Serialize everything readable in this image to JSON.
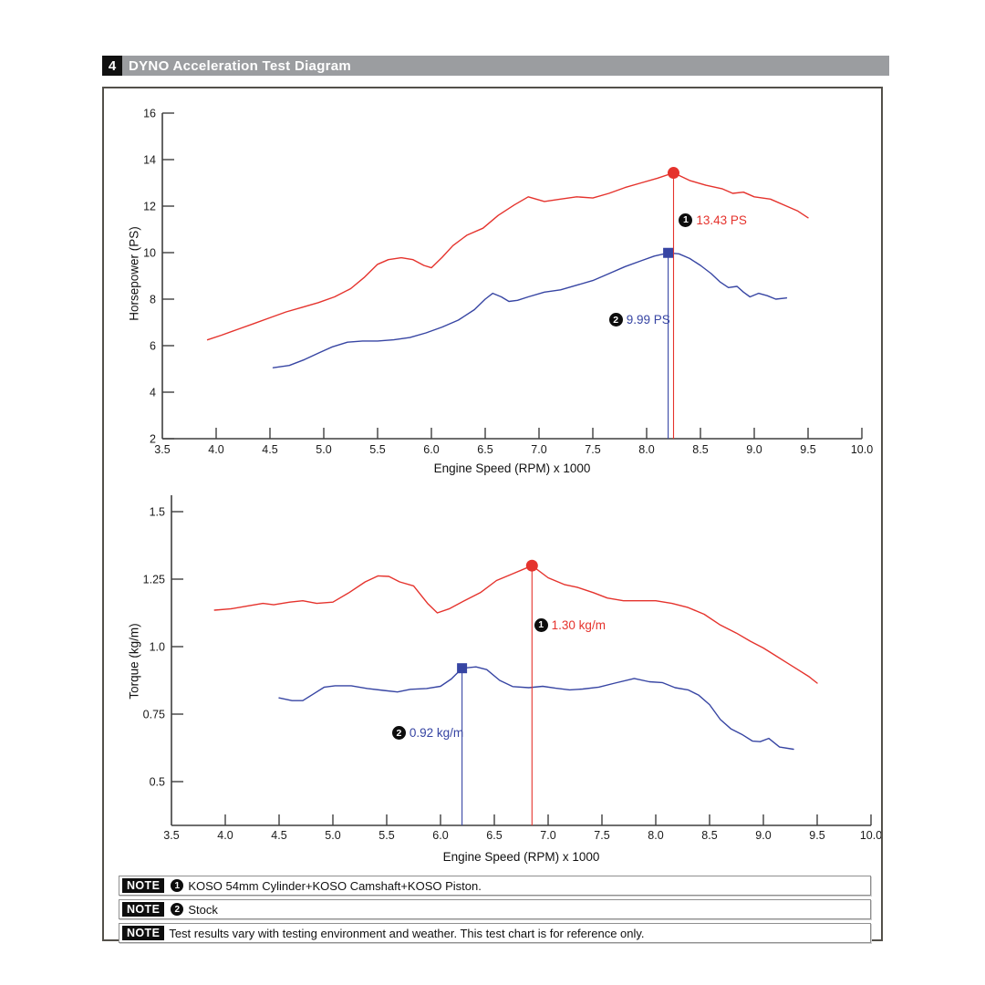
{
  "header": {
    "number": "4",
    "title": "DYNO Acceleration Test Diagram"
  },
  "colors": {
    "koso_red": "#e5332d",
    "stock_blue": "#3745a3",
    "header_gray": "#9b9da0",
    "axis": "#3f3f3f"
  },
  "chart_data": [
    {
      "type": "line",
      "title": "DYNO Acceleration Test - Horsepower",
      "xlabel": "Engine Speed (RPM) x 1000",
      "ylabel": "Horsepower (PS)",
      "xlim": [
        3.5,
        10.0
      ],
      "ylim": [
        2,
        16
      ],
      "grid": false,
      "legend_position": "none",
      "xtick_labels": [
        "3.5",
        "4.0",
        "4.5",
        "5.0",
        "5.5",
        "6.0",
        "6.5",
        "7.0",
        "7.5",
        "8.0",
        "8.5",
        "9.0",
        "9.5",
        "10.0"
      ],
      "ytick_labels": [
        "2",
        "4",
        "6",
        "8",
        "10",
        "12",
        "14",
        "16"
      ],
      "series": [
        {
          "name": "KOSO 54mm Cylinder+KOSO Camshaft+KOSO Piston",
          "color": "#e5332d",
          "points": [
            [
              3.92,
              6.25
            ],
            [
              4.05,
              6.45
            ],
            [
              4.2,
              6.7
            ],
            [
              4.35,
              6.95
            ],
            [
              4.5,
              7.2
            ],
            [
              4.65,
              7.45
            ],
            [
              4.8,
              7.65
            ],
            [
              4.95,
              7.85
            ],
            [
              5.1,
              8.1
            ],
            [
              5.25,
              8.45
            ],
            [
              5.38,
              8.95
            ],
            [
              5.5,
              9.5
            ],
            [
              5.6,
              9.7
            ],
            [
              5.72,
              9.78
            ],
            [
              5.83,
              9.7
            ],
            [
              5.93,
              9.45
            ],
            [
              6.0,
              9.35
            ],
            [
              6.1,
              9.8
            ],
            [
              6.2,
              10.3
            ],
            [
              6.33,
              10.75
            ],
            [
              6.48,
              11.05
            ],
            [
              6.62,
              11.6
            ],
            [
              6.77,
              12.05
            ],
            [
              6.9,
              12.4
            ],
            [
              7.05,
              12.2
            ],
            [
              7.2,
              12.3
            ],
            [
              7.35,
              12.4
            ],
            [
              7.5,
              12.35
            ],
            [
              7.65,
              12.55
            ],
            [
              7.8,
              12.8
            ],
            [
              7.95,
              13.0
            ],
            [
              8.1,
              13.2
            ],
            [
              8.25,
              13.43
            ],
            [
              8.4,
              13.1
            ],
            [
              8.55,
              12.9
            ],
            [
              8.7,
              12.75
            ],
            [
              8.8,
              12.55
            ],
            [
              8.9,
              12.6
            ],
            [
              9.0,
              12.4
            ],
            [
              9.15,
              12.3
            ],
            [
              9.3,
              12.0
            ],
            [
              9.4,
              11.8
            ],
            [
              9.5,
              11.5
            ]
          ]
        },
        {
          "name": "Stock",
          "color": "#3745a3",
          "points": [
            [
              4.53,
              5.05
            ],
            [
              4.68,
              5.15
            ],
            [
              4.82,
              5.4
            ],
            [
              4.96,
              5.7
            ],
            [
              5.08,
              5.95
            ],
            [
              5.22,
              6.15
            ],
            [
              5.36,
              6.2
            ],
            [
              5.5,
              6.2
            ],
            [
              5.65,
              6.25
            ],
            [
              5.8,
              6.35
            ],
            [
              5.95,
              6.55
            ],
            [
              6.1,
              6.8
            ],
            [
              6.25,
              7.1
            ],
            [
              6.4,
              7.55
            ],
            [
              6.5,
              8.0
            ],
            [
              6.57,
              8.25
            ],
            [
              6.65,
              8.1
            ],
            [
              6.72,
              7.9
            ],
            [
              6.8,
              7.95
            ],
            [
              6.9,
              8.1
            ],
            [
              7.05,
              8.3
            ],
            [
              7.2,
              8.4
            ],
            [
              7.35,
              8.6
            ],
            [
              7.5,
              8.8
            ],
            [
              7.65,
              9.1
            ],
            [
              7.8,
              9.4
            ],
            [
              7.95,
              9.65
            ],
            [
              8.07,
              9.85
            ],
            [
              8.2,
              9.99
            ],
            [
              8.3,
              9.95
            ],
            [
              8.4,
              9.75
            ],
            [
              8.5,
              9.45
            ],
            [
              8.6,
              9.1
            ],
            [
              8.68,
              8.75
            ],
            [
              8.76,
              8.5
            ],
            [
              8.84,
              8.55
            ],
            [
              8.9,
              8.3
            ],
            [
              8.96,
              8.1
            ],
            [
              9.04,
              8.25
            ],
            [
              9.12,
              8.15
            ],
            [
              9.2,
              8.0
            ],
            [
              9.3,
              8.05
            ]
          ]
        }
      ],
      "markers": [
        {
          "series": 0,
          "x": 8.25,
          "y": 13.43,
          "shape": "circle",
          "badge": "1",
          "label": "13.43 PS",
          "label_x": 8.3,
          "label_y": 11.4
        },
        {
          "series": 1,
          "x": 8.2,
          "y": 9.99,
          "shape": "square",
          "badge": "2",
          "label": "9.99 PS",
          "label_x": 7.65,
          "label_y": 7.1
        }
      ]
    },
    {
      "type": "line",
      "title": "DYNO Acceleration Test - Torque",
      "xlabel": "Engine Speed (RPM) x 1000",
      "ylabel": "Torque (kg/m)",
      "xlim": [
        3.5,
        10.0
      ],
      "ylim": [
        0.34,
        1.55
      ],
      "grid": false,
      "legend_position": "none",
      "xtick_labels": [
        "3.5",
        "4.0",
        "4.5",
        "5.0",
        "5.5",
        "6.0",
        "6.5",
        "7.0",
        "7.5",
        "8.0",
        "8.5",
        "9.0",
        "9.5",
        "10.0"
      ],
      "ytick_labels": [
        "0.5",
        "0.75",
        "1.0",
        "1.25",
        "1.5"
      ],
      "series": [
        {
          "name": "KOSO 54mm Cylinder+KOSO Camshaft+KOSO Piston",
          "color": "#e5332d",
          "points": [
            [
              3.9,
              1.135
            ],
            [
              4.05,
              1.14
            ],
            [
              4.2,
              1.15
            ],
            [
              4.35,
              1.16
            ],
            [
              4.45,
              1.155
            ],
            [
              4.6,
              1.165
            ],
            [
              4.72,
              1.17
            ],
            [
              4.85,
              1.16
            ],
            [
              5.0,
              1.165
            ],
            [
              5.15,
              1.2
            ],
            [
              5.3,
              1.24
            ],
            [
              5.42,
              1.262
            ],
            [
              5.52,
              1.26
            ],
            [
              5.62,
              1.24
            ],
            [
              5.75,
              1.225
            ],
            [
              5.88,
              1.16
            ],
            [
              5.97,
              1.125
            ],
            [
              6.08,
              1.14
            ],
            [
              6.22,
              1.17
            ],
            [
              6.37,
              1.2
            ],
            [
              6.52,
              1.245
            ],
            [
              6.67,
              1.27
            ],
            [
              6.85,
              1.3
            ],
            [
              7.0,
              1.255
            ],
            [
              7.15,
              1.23
            ],
            [
              7.27,
              1.22
            ],
            [
              7.42,
              1.2
            ],
            [
              7.55,
              1.18
            ],
            [
              7.7,
              1.17
            ],
            [
              7.85,
              1.17
            ],
            [
              8.0,
              1.17
            ],
            [
              8.15,
              1.16
            ],
            [
              8.3,
              1.145
            ],
            [
              8.45,
              1.12
            ],
            [
              8.6,
              1.08
            ],
            [
              8.75,
              1.05
            ],
            [
              8.88,
              1.02
            ],
            [
              9.0,
              0.995
            ],
            [
              9.1,
              0.97
            ],
            [
              9.2,
              0.945
            ],
            [
              9.32,
              0.915
            ],
            [
              9.42,
              0.89
            ],
            [
              9.5,
              0.865
            ]
          ]
        },
        {
          "name": "Stock",
          "color": "#3745a3",
          "points": [
            [
              4.5,
              0.81
            ],
            [
              4.62,
              0.8
            ],
            [
              4.72,
              0.8
            ],
            [
              4.82,
              0.825
            ],
            [
              4.92,
              0.85
            ],
            [
              5.02,
              0.855
            ],
            [
              5.17,
              0.855
            ],
            [
              5.32,
              0.845
            ],
            [
              5.47,
              0.838
            ],
            [
              5.6,
              0.832
            ],
            [
              5.72,
              0.842
            ],
            [
              5.87,
              0.845
            ],
            [
              6.0,
              0.853
            ],
            [
              6.1,
              0.88
            ],
            [
              6.2,
              0.92
            ],
            [
              6.33,
              0.925
            ],
            [
              6.43,
              0.915
            ],
            [
              6.55,
              0.875
            ],
            [
              6.67,
              0.852
            ],
            [
              6.82,
              0.848
            ],
            [
              6.95,
              0.853
            ],
            [
              7.07,
              0.846
            ],
            [
              7.2,
              0.84
            ],
            [
              7.32,
              0.843
            ],
            [
              7.47,
              0.85
            ],
            [
              7.62,
              0.865
            ],
            [
              7.8,
              0.882
            ],
            [
              7.94,
              0.87
            ],
            [
              8.06,
              0.867
            ],
            [
              8.18,
              0.848
            ],
            [
              8.3,
              0.84
            ],
            [
              8.4,
              0.82
            ],
            [
              8.5,
              0.785
            ],
            [
              8.6,
              0.73
            ],
            [
              8.7,
              0.695
            ],
            [
              8.8,
              0.675
            ],
            [
              8.9,
              0.65
            ],
            [
              8.97,
              0.648
            ],
            [
              9.05,
              0.66
            ],
            [
              9.15,
              0.628
            ],
            [
              9.28,
              0.62
            ]
          ]
        }
      ],
      "markers": [
        {
          "series": 0,
          "x": 6.85,
          "y": 1.3,
          "shape": "circle",
          "badge": "1",
          "label": "1.30 kg/m",
          "label_x": 6.87,
          "label_y": 1.08
        },
        {
          "series": 1,
          "x": 6.2,
          "y": 0.92,
          "shape": "square",
          "badge": "2",
          "label": "0.92 kg/m",
          "label_x": 5.55,
          "label_y": 0.68
        }
      ]
    }
  ],
  "notes": [
    {
      "tag": "NOTE",
      "badge": "1",
      "text": "KOSO 54mm Cylinder+KOSO Camshaft+KOSO Piston."
    },
    {
      "tag": "NOTE",
      "badge": "2",
      "text": "Stock"
    },
    {
      "tag": "NOTE",
      "badge": "",
      "text": "Test results vary with testing environment and weather. This test chart is for reference only."
    }
  ]
}
